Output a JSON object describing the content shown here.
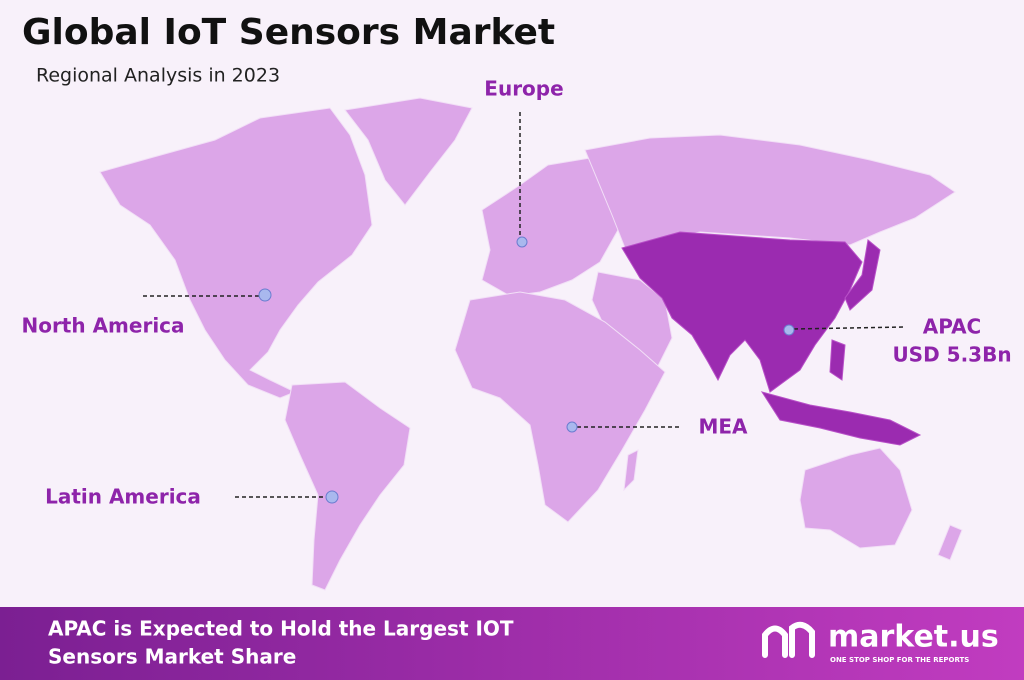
{
  "header": {
    "title": "Global IoT Sensors Market",
    "subtitle": "Regional Analysis in 2023"
  },
  "regions": [
    {
      "label": "Europe"
    },
    {
      "label": "North America"
    },
    {
      "label": "APAC",
      "value": "USD 5.3Bn"
    },
    {
      "label": "MEA"
    },
    {
      "label": "Latin America"
    }
  ],
  "footer": {
    "lines": [
      "APAC is Expected to Hold the Largest IOT",
      "Sensors Market Share"
    ]
  },
  "logo": {
    "name": "market.us",
    "tagline": "ONE STOP SHOP FOR THE REPORTS"
  }
}
